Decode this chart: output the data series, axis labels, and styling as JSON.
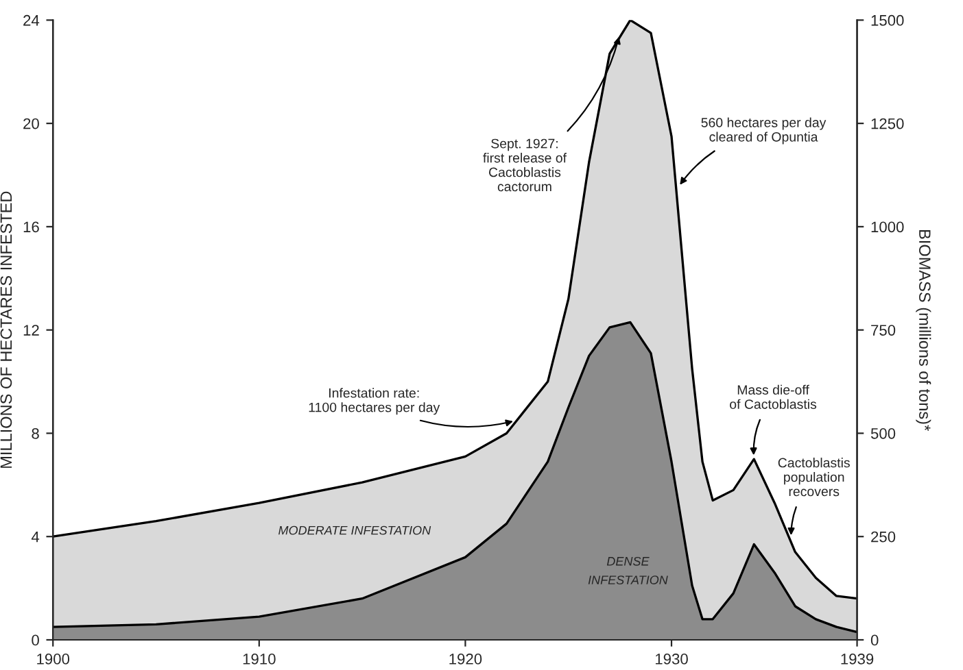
{
  "chart_data": {
    "type": "area",
    "ylabel": "MILLIONS OF HECTARES INFESTED",
    "y2label": "BIOMASS (millions of tons)*",
    "xlim": [
      1900,
      1939
    ],
    "xticks": [
      1900,
      1910,
      1920,
      1930,
      1939
    ],
    "ylim": [
      0,
      24
    ],
    "yticks": [
      0,
      4,
      8,
      12,
      16,
      20,
      24
    ],
    "y2lim": [
      0,
      1500
    ],
    "y2ticks": [
      0,
      250,
      500,
      750,
      1000,
      1250,
      1500
    ],
    "legend": false,
    "grid": false,
    "series": [
      {
        "name": "MODERATE INFESTATION",
        "color": "#d9d9d9",
        "x": [
          1900,
          1905,
          1910,
          1915,
          1920,
          1922,
          1924,
          1925,
          1926,
          1927,
          1928,
          1929,
          1930,
          1931,
          1931.5,
          1932,
          1933,
          1934,
          1935,
          1936,
          1937,
          1938,
          1939
        ],
        "values": [
          4.0,
          4.6,
          5.3,
          6.1,
          7.1,
          8.0,
          10.0,
          13.2,
          18.5,
          22.7,
          24.0,
          23.5,
          19.5,
          10.5,
          6.9,
          5.4,
          5.8,
          7.0,
          5.3,
          3.4,
          2.4,
          1.7,
          1.6
        ]
      },
      {
        "name": "DENSE\nINFESTATION",
        "color": "#8c8c8c",
        "x": [
          1900,
          1905,
          1910,
          1915,
          1920,
          1922,
          1924,
          1925,
          1926,
          1927,
          1928,
          1929,
          1930,
          1931,
          1931.5,
          1932,
          1933,
          1934,
          1935,
          1936,
          1937,
          1938,
          1939
        ],
        "values": [
          0.5,
          0.6,
          0.9,
          1.6,
          3.2,
          4.5,
          6.9,
          9.0,
          11.0,
          12.1,
          12.3,
          11.1,
          6.9,
          2.1,
          0.8,
          0.8,
          1.8,
          3.7,
          2.6,
          1.3,
          0.8,
          0.5,
          0.3
        ]
      }
    ],
    "annotations": [
      {
        "text": "Infestation rate:\n1100 hectares per day",
        "x": 1922.5,
        "y": 8.5
      },
      {
        "text": "Sept. 1927:\nfirst release of\nCactoblastis\ncactorum",
        "x": 1927.5,
        "y": 23.5
      },
      {
        "text": "560 hectares per day\ncleared of Opuntia",
        "x": 1930.3,
        "y": 17.5
      },
      {
        "text": "Mass die-off\nof Cactoblastis",
        "x": 1934,
        "y": 7.0
      },
      {
        "text": "Cactoblastis\npopulation\nrecovers",
        "x": 1935.8,
        "y": 3.9
      }
    ]
  }
}
